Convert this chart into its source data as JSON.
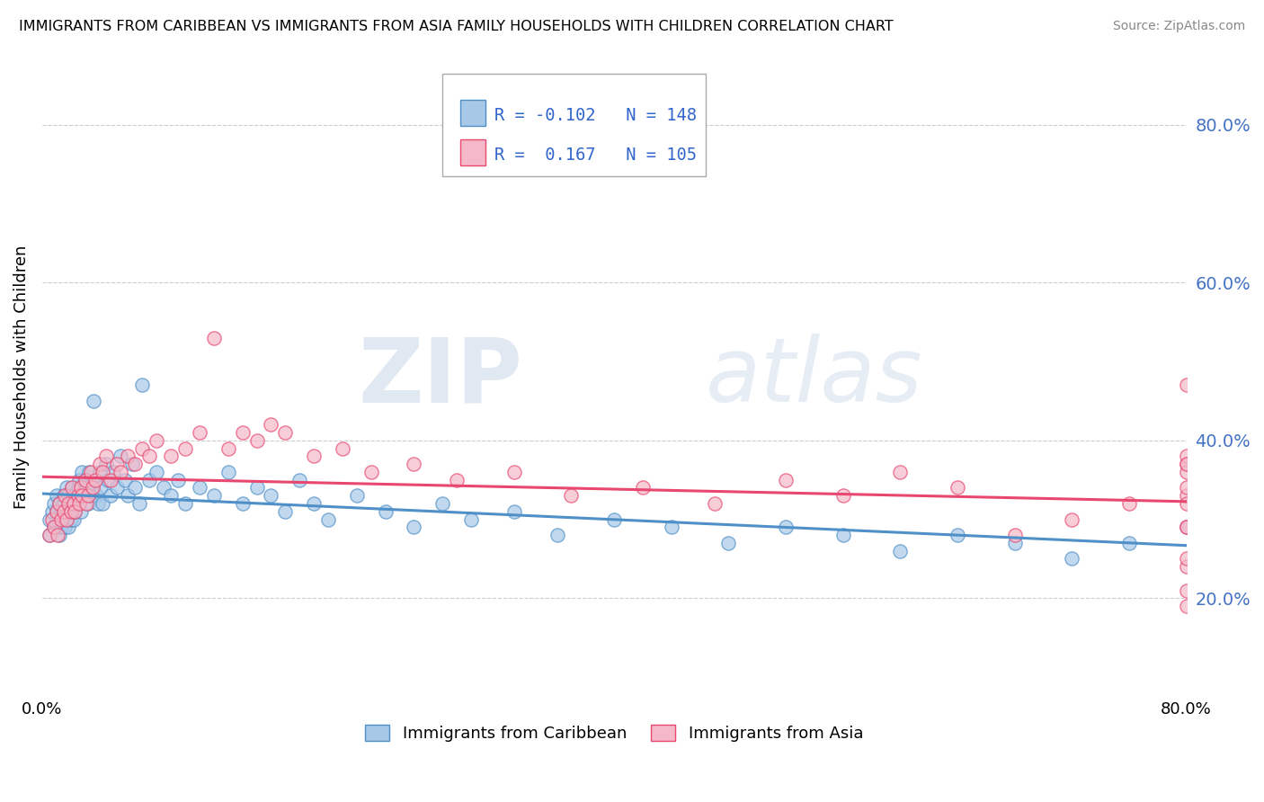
{
  "title": "IMMIGRANTS FROM CARIBBEAN VS IMMIGRANTS FROM ASIA FAMILY HOUSEHOLDS WITH CHILDREN CORRELATION CHART",
  "source": "Source: ZipAtlas.com",
  "ylabel": "Family Households with Children",
  "color_blue": "#a8c8e8",
  "color_pink": "#f4b8c8",
  "line_blue": "#5090c8",
  "line_pink": "#e84870",
  "watermark_zip": "ZIP",
  "watermark_atlas": "atlas",
  "xlim": [
    0.0,
    0.8
  ],
  "ylim": [
    0.08,
    0.88
  ],
  "yticks": [
    0.2,
    0.4,
    0.6,
    0.8
  ],
  "figsize": [
    14.06,
    8.92
  ],
  "dpi": 100,
  "blue_scatter_x": [
    0.005,
    0.005,
    0.007,
    0.008,
    0.008,
    0.01,
    0.01,
    0.01,
    0.01,
    0.012,
    0.012,
    0.012,
    0.013,
    0.013,
    0.015,
    0.015,
    0.015,
    0.015,
    0.016,
    0.016,
    0.017,
    0.017,
    0.018,
    0.018,
    0.018,
    0.02,
    0.02,
    0.02,
    0.021,
    0.022,
    0.022,
    0.023,
    0.023,
    0.025,
    0.025,
    0.026,
    0.026,
    0.027,
    0.028,
    0.028,
    0.03,
    0.03,
    0.031,
    0.032,
    0.033,
    0.034,
    0.035,
    0.036,
    0.037,
    0.038,
    0.039,
    0.04,
    0.041,
    0.042,
    0.045,
    0.046,
    0.048,
    0.05,
    0.052,
    0.055,
    0.058,
    0.06,
    0.063,
    0.065,
    0.068,
    0.07,
    0.075,
    0.08,
    0.085,
    0.09,
    0.095,
    0.1,
    0.11,
    0.12,
    0.13,
    0.14,
    0.15,
    0.16,
    0.17,
    0.18,
    0.19,
    0.2,
    0.22,
    0.24,
    0.26,
    0.28,
    0.3,
    0.33,
    0.36,
    0.4,
    0.44,
    0.48,
    0.52,
    0.56,
    0.6,
    0.64,
    0.68,
    0.72,
    0.76,
    0.8
  ],
  "blue_scatter_y": [
    0.3,
    0.28,
    0.31,
    0.29,
    0.32,
    0.31,
    0.3,
    0.29,
    0.33,
    0.28,
    0.32,
    0.3,
    0.31,
    0.29,
    0.32,
    0.31,
    0.3,
    0.33,
    0.29,
    0.31,
    0.3,
    0.34,
    0.31,
    0.29,
    0.33,
    0.32,
    0.3,
    0.31,
    0.34,
    0.3,
    0.33,
    0.32,
    0.31,
    0.34,
    0.32,
    0.35,
    0.33,
    0.31,
    0.36,
    0.34,
    0.35,
    0.33,
    0.34,
    0.32,
    0.36,
    0.33,
    0.34,
    0.45,
    0.35,
    0.33,
    0.32,
    0.36,
    0.34,
    0.32,
    0.37,
    0.35,
    0.33,
    0.36,
    0.34,
    0.38,
    0.35,
    0.33,
    0.37,
    0.34,
    0.32,
    0.47,
    0.35,
    0.36,
    0.34,
    0.33,
    0.35,
    0.32,
    0.34,
    0.33,
    0.36,
    0.32,
    0.34,
    0.33,
    0.31,
    0.35,
    0.32,
    0.3,
    0.33,
    0.31,
    0.29,
    0.32,
    0.3,
    0.31,
    0.28,
    0.3,
    0.29,
    0.27,
    0.29,
    0.28,
    0.26,
    0.28,
    0.27,
    0.25,
    0.27,
    0.29
  ],
  "pink_scatter_x": [
    0.005,
    0.007,
    0.008,
    0.01,
    0.011,
    0.012,
    0.013,
    0.015,
    0.016,
    0.017,
    0.018,
    0.02,
    0.021,
    0.022,
    0.023,
    0.025,
    0.026,
    0.027,
    0.028,
    0.03,
    0.031,
    0.032,
    0.034,
    0.035,
    0.037,
    0.04,
    0.042,
    0.045,
    0.048,
    0.052,
    0.055,
    0.06,
    0.065,
    0.07,
    0.075,
    0.08,
    0.09,
    0.1,
    0.11,
    0.12,
    0.13,
    0.14,
    0.15,
    0.16,
    0.17,
    0.19,
    0.21,
    0.23,
    0.26,
    0.29,
    0.33,
    0.37,
    0.42,
    0.47,
    0.52,
    0.56,
    0.6,
    0.64,
    0.68,
    0.72,
    0.76,
    0.8,
    0.8,
    0.8,
    0.8,
    0.8,
    0.8,
    0.8,
    0.8,
    0.8,
    0.8,
    0.8,
    0.8,
    0.8,
    0.8
  ],
  "pink_scatter_y": [
    0.28,
    0.3,
    0.29,
    0.31,
    0.28,
    0.32,
    0.3,
    0.31,
    0.33,
    0.3,
    0.32,
    0.31,
    0.34,
    0.32,
    0.31,
    0.33,
    0.32,
    0.34,
    0.33,
    0.35,
    0.32,
    0.33,
    0.36,
    0.34,
    0.35,
    0.37,
    0.36,
    0.38,
    0.35,
    0.37,
    0.36,
    0.38,
    0.37,
    0.39,
    0.38,
    0.4,
    0.38,
    0.39,
    0.41,
    0.53,
    0.39,
    0.41,
    0.4,
    0.42,
    0.41,
    0.38,
    0.39,
    0.36,
    0.37,
    0.35,
    0.36,
    0.33,
    0.34,
    0.32,
    0.35,
    0.33,
    0.36,
    0.34,
    0.28,
    0.3,
    0.32,
    0.29,
    0.37,
    0.24,
    0.38,
    0.33,
    0.47,
    0.36,
    0.19,
    0.32,
    0.21,
    0.29,
    0.37,
    0.25,
    0.34
  ]
}
